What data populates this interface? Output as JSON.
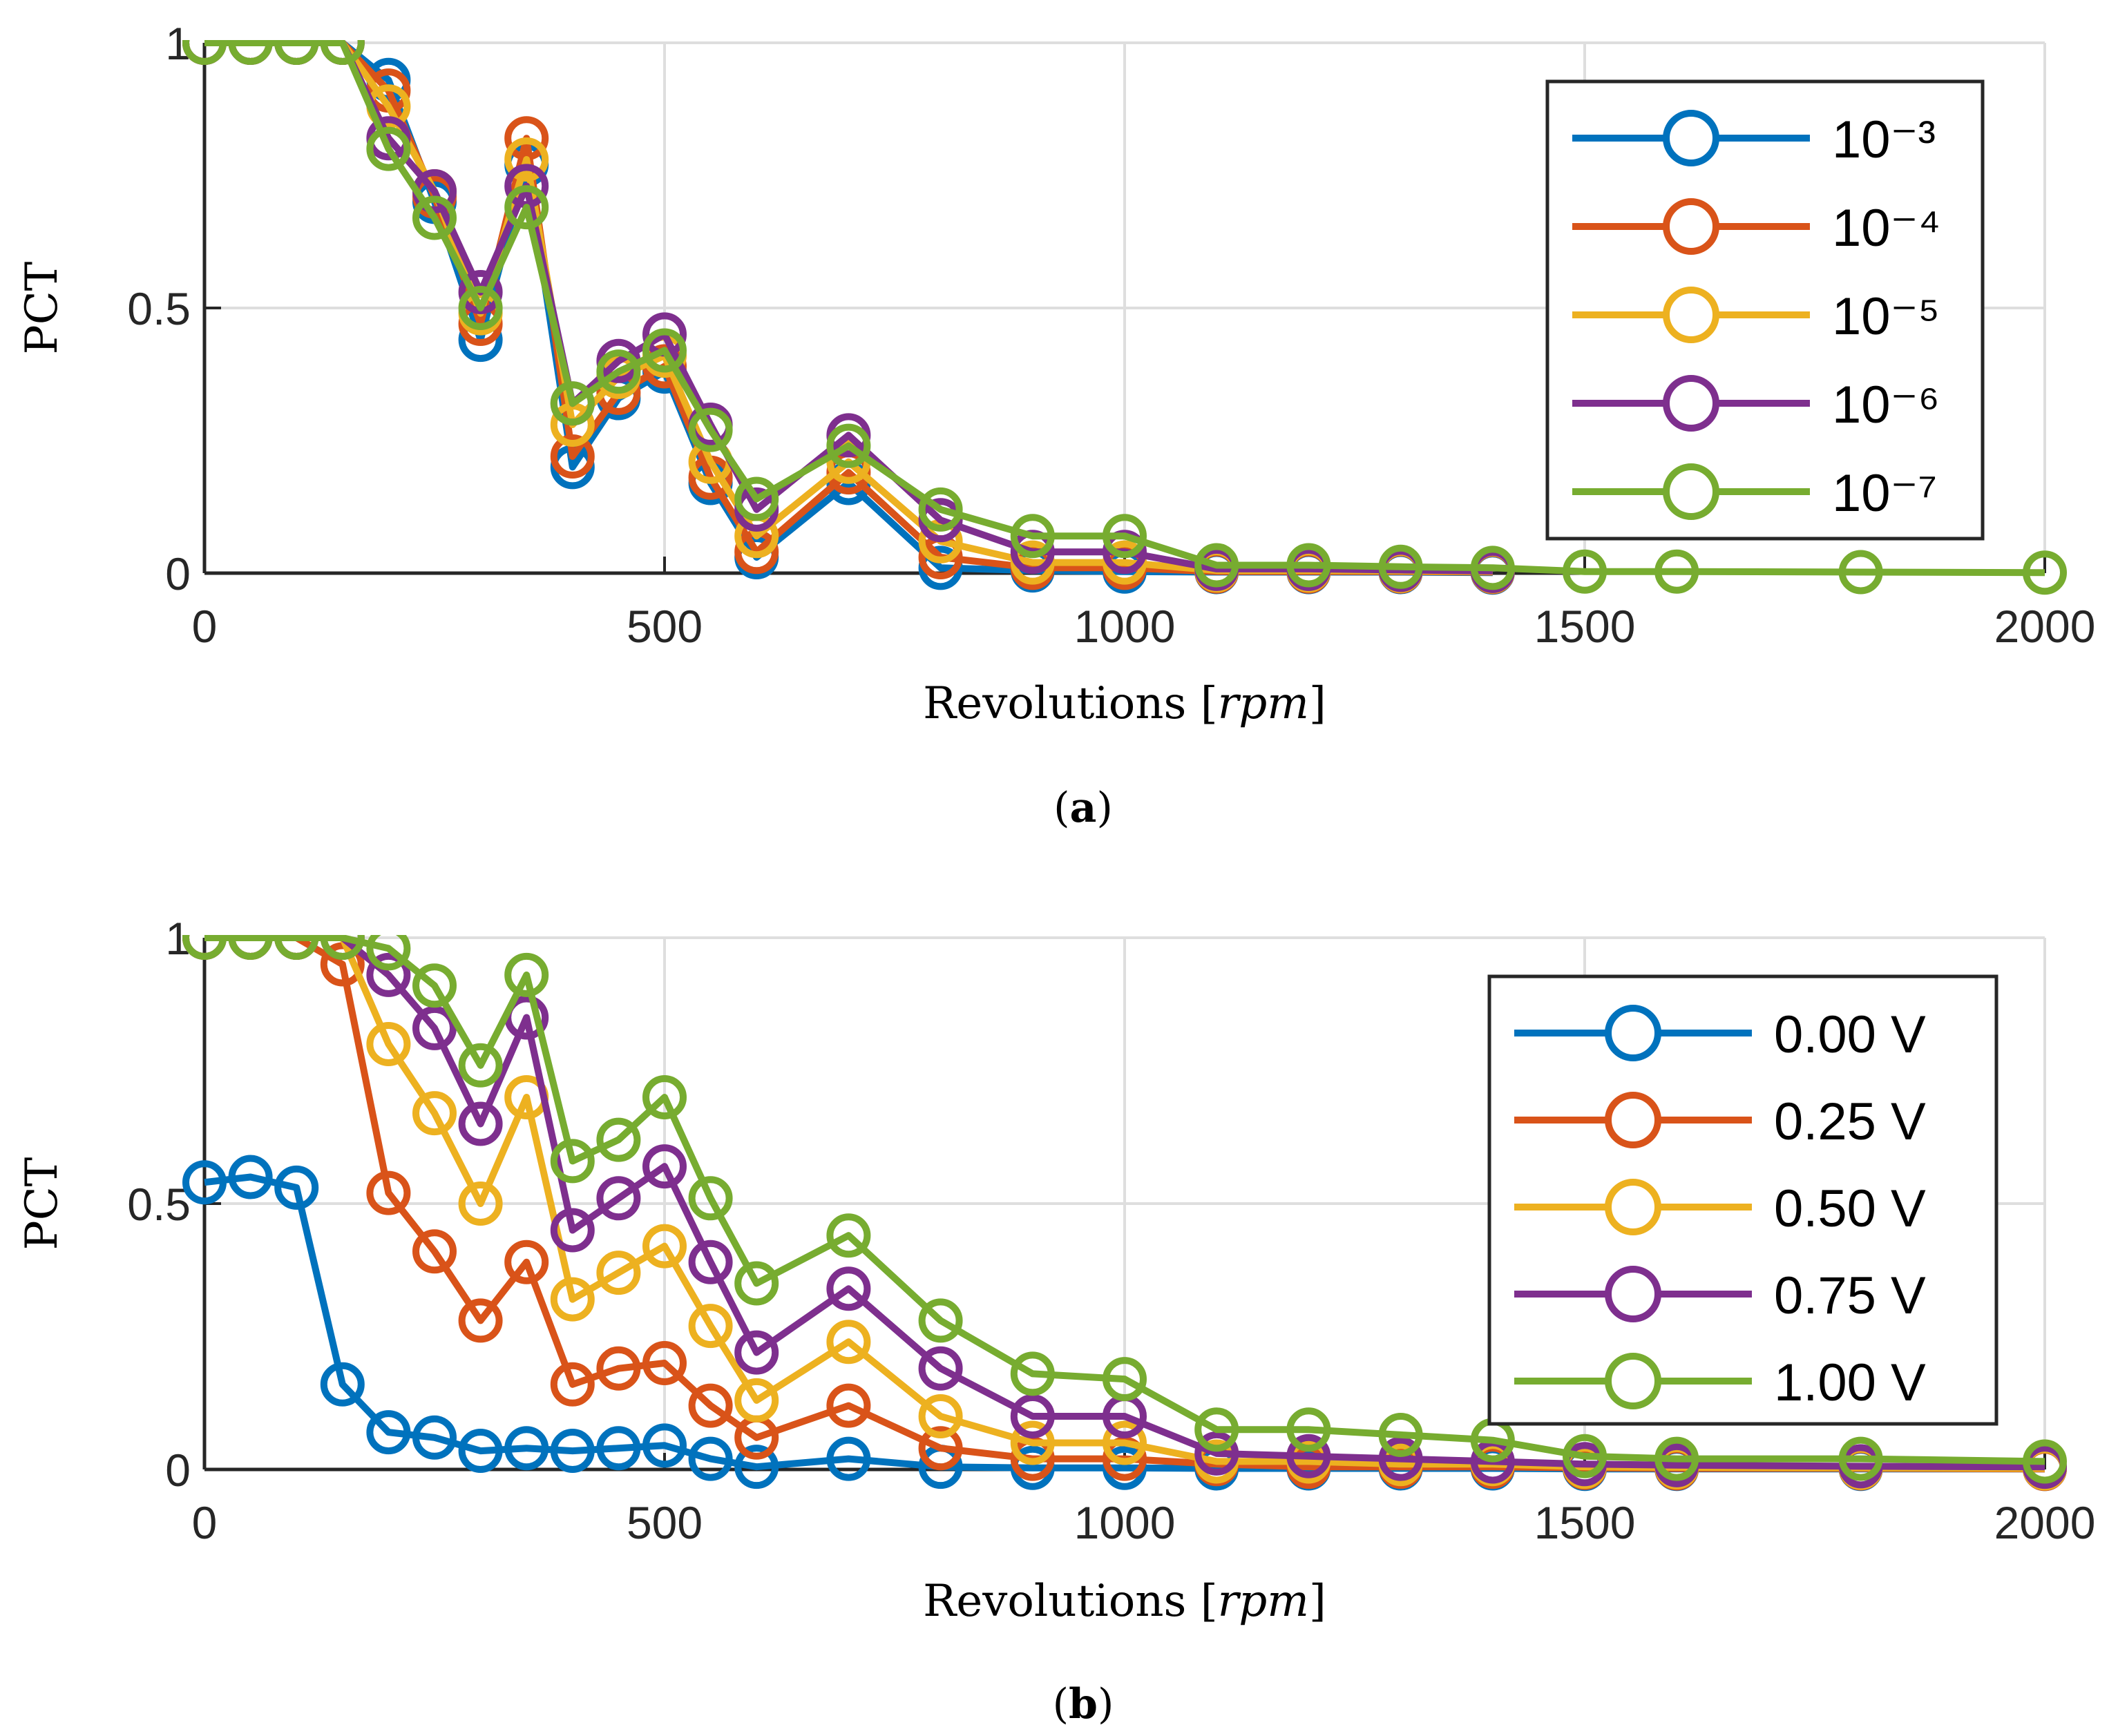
{
  "chart_data": [
    {
      "type": "line",
      "caption": "(a)",
      "caption_letter": "a",
      "xlabel": "Revolutions",
      "xunit": "rpm",
      "ylabel": "PCT",
      "xlim": [
        0,
        2000
      ],
      "ylim": [
        0,
        1
      ],
      "xticks": [
        0,
        500,
        1000,
        1500,
        2000
      ],
      "yticks": [
        0,
        0.5,
        1
      ],
      "grid": true,
      "legend_position": "top-right",
      "series": [
        {
          "name": "10⁻³",
          "color": "#0072BD",
          "x": [
            0,
            50,
            100,
            150,
            200,
            250,
            300,
            350,
            400,
            450,
            500,
            550,
            600,
            700,
            800,
            900,
            1000,
            1100,
            1200,
            1300,
            1400
          ],
          "y": [
            1,
            1,
            1,
            1,
            0.93,
            0.7,
            0.44,
            0.77,
            0.2,
            0.33,
            0.38,
            0.17,
            0.03,
            0.17,
            0.01,
            0.005,
            0.003,
            0.002,
            0.002,
            0.002,
            0.001
          ]
        },
        {
          "name": "10⁻⁴",
          "color": "#D95319",
          "x": [
            0,
            50,
            100,
            150,
            200,
            250,
            300,
            350,
            400,
            450,
            500,
            550,
            600,
            700,
            800,
            900,
            1000,
            1100,
            1200,
            1300,
            1400
          ],
          "y": [
            1,
            1,
            1,
            1,
            0.91,
            0.71,
            0.47,
            0.82,
            0.22,
            0.34,
            0.39,
            0.18,
            0.04,
            0.19,
            0.03,
            0.01,
            0.01,
            0.003,
            0.003,
            0.003,
            0.002
          ]
        },
        {
          "name": "10⁻⁵",
          "color": "#EDB120",
          "x": [
            0,
            50,
            100,
            150,
            200,
            250,
            300,
            350,
            400,
            450,
            500,
            550,
            600,
            700,
            800,
            900,
            1000,
            1100,
            1200,
            1300,
            1400
          ],
          "y": [
            1,
            1,
            1,
            1,
            0.88,
            0.72,
            0.49,
            0.78,
            0.28,
            0.37,
            0.41,
            0.21,
            0.07,
            0.21,
            0.06,
            0.02,
            0.02,
            0.005,
            0.005,
            0.004,
            0.003
          ]
        },
        {
          "name": "10⁻⁶",
          "color": "#7E2F8E",
          "x": [
            0,
            50,
            100,
            150,
            200,
            250,
            300,
            350,
            400,
            450,
            500,
            550,
            600,
            700,
            800,
            900,
            1000,
            1100,
            1200,
            1300,
            1400
          ],
          "y": [
            1,
            1,
            1,
            1,
            0.82,
            0.72,
            0.53,
            0.73,
            0.32,
            0.4,
            0.45,
            0.28,
            0.12,
            0.26,
            0.1,
            0.04,
            0.04,
            0.008,
            0.008,
            0.006,
            0.004
          ]
        },
        {
          "name": "10⁻⁷",
          "color": "#77AC30",
          "x": [
            0,
            50,
            100,
            150,
            200,
            250,
            300,
            350,
            400,
            450,
            500,
            550,
            600,
            700,
            800,
            900,
            1000,
            1100,
            1200,
            1300,
            1400,
            1500,
            1600,
            1800,
            2000
          ],
          "y": [
            1,
            1,
            1,
            1,
            0.8,
            0.67,
            0.5,
            0.69,
            0.32,
            0.38,
            0.42,
            0.27,
            0.14,
            0.24,
            0.12,
            0.07,
            0.07,
            0.015,
            0.015,
            0.012,
            0.01,
            0.003,
            0.003,
            0.002,
            0.001
          ]
        }
      ]
    },
    {
      "type": "line",
      "caption": "(b)",
      "caption_letter": "b",
      "xlabel": "Revolutions",
      "xunit": "rpm",
      "ylabel": "PCT",
      "xlim": [
        0,
        2000
      ],
      "ylim": [
        0,
        1
      ],
      "xticks": [
        0,
        500,
        1000,
        1500,
        2000
      ],
      "yticks": [
        0,
        0.5,
        1
      ],
      "grid": true,
      "legend_position": "right",
      "series": [
        {
          "name": "0.00 V",
          "color": "#0072BD",
          "x": [
            0,
            50,
            100,
            150,
            200,
            250,
            300,
            350,
            400,
            450,
            500,
            550,
            600,
            700,
            800,
            900,
            1000,
            1100,
            1200,
            1300,
            1400,
            1500,
            1600,
            1800,
            2000
          ],
          "y": [
            0.54,
            0.55,
            0.53,
            0.16,
            0.07,
            0.06,
            0.035,
            0.04,
            0.035,
            0.04,
            0.045,
            0.02,
            0.005,
            0.02,
            0.005,
            0.003,
            0.003,
            0.002,
            0.002,
            0.002,
            0.002,
            0.001,
            0.001,
            0.001,
            0.001
          ]
        },
        {
          "name": "0.25 V",
          "color": "#D95319",
          "x": [
            0,
            50,
            100,
            150,
            200,
            250,
            300,
            350,
            400,
            450,
            500,
            550,
            600,
            700,
            800,
            900,
            1000,
            1100,
            1200,
            1300,
            1400,
            1500,
            1600,
            1800,
            2000
          ],
          "y": [
            1,
            1,
            1,
            0.95,
            0.52,
            0.41,
            0.28,
            0.39,
            0.16,
            0.19,
            0.2,
            0.12,
            0.06,
            0.12,
            0.04,
            0.02,
            0.02,
            0.01,
            0.005,
            0.005,
            0.005,
            0.003,
            0.002,
            0.002,
            0.001
          ]
        },
        {
          "name": "0.50 V",
          "color": "#EDB120",
          "x": [
            0,
            50,
            100,
            150,
            200,
            250,
            300,
            350,
            400,
            450,
            500,
            550,
            600,
            700,
            800,
            900,
            1000,
            1100,
            1200,
            1300,
            1400,
            1500,
            1600,
            1800,
            2000
          ],
          "y": [
            1,
            1,
            1,
            1,
            0.8,
            0.67,
            0.5,
            0.7,
            0.32,
            0.37,
            0.42,
            0.27,
            0.13,
            0.24,
            0.1,
            0.05,
            0.05,
            0.015,
            0.015,
            0.01,
            0.01,
            0.005,
            0.004,
            0.003,
            0.002
          ]
        },
        {
          "name": "0.75 V",
          "color": "#7E2F8E",
          "x": [
            0,
            50,
            100,
            150,
            200,
            250,
            300,
            350,
            400,
            450,
            500,
            550,
            600,
            700,
            800,
            900,
            1000,
            1100,
            1200,
            1300,
            1400,
            1500,
            1600,
            1800,
            2000
          ],
          "y": [
            1,
            1,
            1,
            1,
            0.93,
            0.83,
            0.65,
            0.85,
            0.45,
            0.51,
            0.57,
            0.39,
            0.22,
            0.34,
            0.19,
            0.1,
            0.1,
            0.03,
            0.025,
            0.02,
            0.015,
            0.01,
            0.008,
            0.006,
            0.005
          ]
        },
        {
          "name": "1.00 V",
          "color": "#77AC30",
          "x": [
            0,
            50,
            100,
            150,
            200,
            250,
            300,
            350,
            400,
            450,
            500,
            550,
            600,
            700,
            800,
            900,
            1000,
            1100,
            1200,
            1300,
            1400,
            1500,
            1600,
            1800,
            2000
          ],
          "y": [
            1,
            1,
            1,
            1,
            0.98,
            0.91,
            0.76,
            0.93,
            0.58,
            0.62,
            0.7,
            0.51,
            0.35,
            0.44,
            0.28,
            0.18,
            0.17,
            0.075,
            0.075,
            0.065,
            0.055,
            0.025,
            0.02,
            0.02,
            0.015
          ]
        }
      ]
    }
  ]
}
